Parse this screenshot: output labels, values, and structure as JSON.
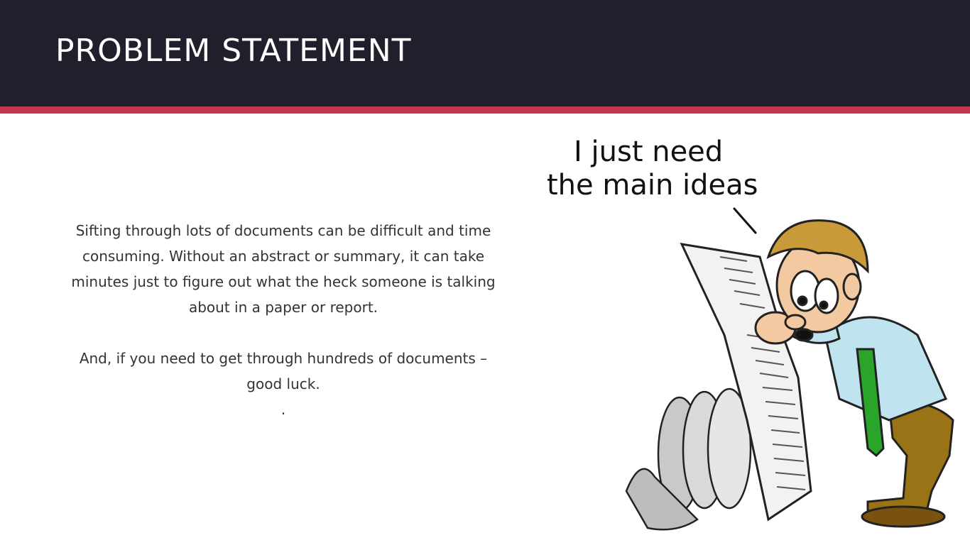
{
  "slide": {
    "title": "PROBLEM STATEMENT",
    "paragraphs": [
      "Sifting through lots of documents can be difficult and time consuming. Without an abstract or summary, it can take minutes just to figure out what the heck someone is talking about in a paper or report.",
      "And, if you need to get through hundreds of documents – good luck.",
      "."
    ]
  },
  "illustration": {
    "speech_line1": "I just need",
    "speech_line2": "the main ideas"
  },
  "colors": {
    "header_bg": "#1f202b",
    "accent": "#c4364b",
    "title_text": "#ffffff",
    "body_text": "#333333"
  }
}
